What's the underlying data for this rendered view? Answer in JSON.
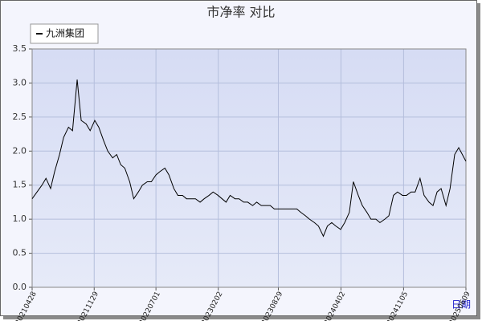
{
  "chart_data": {
    "type": "line",
    "title": "市净率  对比",
    "x_label": "日期",
    "grid": true,
    "legend": "upper left",
    "x": [
      "20210428",
      "20210515",
      "20210601",
      "20210615",
      "20210701",
      "20210715",
      "20210801",
      "20210815",
      "20210901",
      "20210915",
      "20211001",
      "20211015",
      "20211101",
      "20211115",
      "20211201",
      "20211215",
      "20220101",
      "20220115",
      "20220201",
      "20220215",
      "20220301",
      "20220315",
      "20220401",
      "20220415",
      "20220501",
      "20220515",
      "20220601",
      "20220615",
      "20220701",
      "20220715",
      "20220801",
      "20220815",
      "20220901",
      "20220915",
      "20221001",
      "20221015",
      "20221101",
      "20221115",
      "20221201",
      "20221215",
      "20230101",
      "20230115",
      "20230201",
      "20230215",
      "20230301",
      "20230315",
      "20230401",
      "20230415",
      "20230501",
      "20230515",
      "20230601",
      "20230615",
      "20230701",
      "20230715",
      "20230801",
      "20230815",
      "20230901",
      "20230915",
      "20231001",
      "20231015",
      "20231101",
      "20231115",
      "20231201",
      "20231215",
      "20240101",
      "20240115",
      "20240201",
      "20240215",
      "20240301",
      "20240315",
      "20240401",
      "20240415",
      "20240501",
      "20240515",
      "20240601",
      "20240615",
      "20240701",
      "20240715",
      "20240801",
      "20240815",
      "20240901",
      "20240915",
      "20241001",
      "20241015",
      "20241101",
      "20241115",
      "20241201",
      "20241215",
      "20250101",
      "20250115",
      "20250201",
      "20250215",
      "20250301",
      "20250315",
      "20250401",
      "20250415",
      "20250501",
      "20250515",
      "20250609"
    ],
    "series": [
      {
        "name": "九洲集团",
        "color": "#000000",
        "values": [
          1.3,
          1.4,
          1.5,
          1.6,
          1.45,
          1.7,
          1.95,
          2.2,
          2.35,
          2.3,
          3.05,
          2.45,
          2.4,
          2.3,
          2.45,
          2.35,
          2.15,
          2.0,
          1.9,
          1.95,
          1.8,
          1.75,
          1.55,
          1.3,
          1.4,
          1.5,
          1.55,
          1.55,
          1.65,
          1.7,
          1.75,
          1.65,
          1.45,
          1.35,
          1.35,
          1.3,
          1.3,
          1.3,
          1.25,
          1.3,
          1.35,
          1.4,
          1.35,
          1.3,
          1.25,
          1.35,
          1.3,
          1.3,
          1.25,
          1.25,
          1.2,
          1.25,
          1.2,
          1.2,
          1.2,
          1.15,
          1.15,
          1.15,
          1.15,
          1.15,
          1.15,
          1.1,
          1.05,
          1.0,
          0.95,
          0.9,
          0.75,
          0.9,
          0.95,
          0.9,
          0.85,
          0.95,
          1.1,
          1.55,
          1.35,
          1.2,
          1.1,
          1.0,
          1.0,
          0.95,
          1.0,
          1.05,
          1.35,
          1.4,
          1.35,
          1.35,
          1.4,
          1.4,
          1.6,
          1.35,
          1.25,
          1.2,
          1.4,
          1.45,
          1.2,
          1.45,
          1.95,
          2.05,
          1.85
        ]
      }
    ],
    "xlim": [
      "20210428",
      "20250609"
    ],
    "xticks": [
      "20210428",
      "20211129",
      "20220701",
      "20230202",
      "20230829",
      "20240402",
      "20241105",
      "20250609"
    ],
    "ylim": [
      0,
      3.5
    ],
    "yticks": [
      {
        "value": 0,
        "label": "0.0"
      },
      0.5,
      {
        "value": 1,
        "label": "1.0"
      },
      1.5,
      {
        "value": 2,
        "label": "2.0"
      },
      2.5,
      {
        "value": 3,
        "label": "3.0"
      },
      3.5
    ]
  }
}
